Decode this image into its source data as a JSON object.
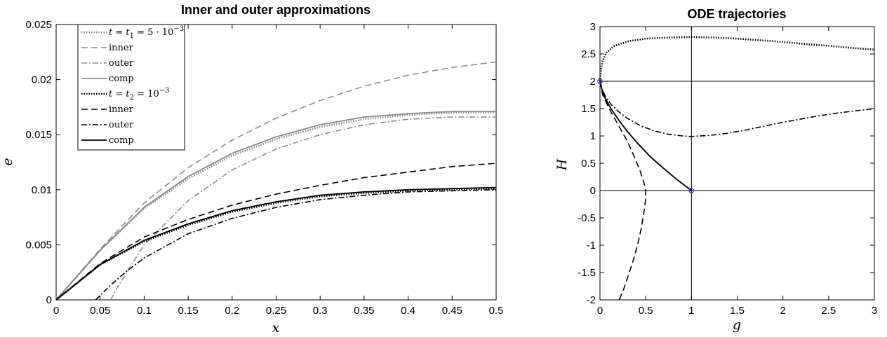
{
  "chart_data": [
    {
      "type": "line",
      "title": "Inner and outer approximations",
      "xlabel": "x",
      "ylabel": "e",
      "xlim": [
        0,
        0.5
      ],
      "ylim": [
        0,
        0.025
      ],
      "xticks": [
        "0",
        "0.05",
        "0.1",
        "0.15",
        "0.2",
        "0.25",
        "0.3",
        "0.35",
        "0.4",
        "0.45",
        "0.5"
      ],
      "yticks": [
        "0",
        "0.005",
        "0.01",
        "0.015",
        "0.02",
        "0.025"
      ],
      "grid": false,
      "legend_position": "top-left",
      "series": [
        {
          "name": "t = t₁ = 5·10⁻³",
          "color": "#8c8c8c",
          "style": "dotted",
          "x": [
            0,
            0.05,
            0.1,
            0.15,
            0.2,
            0.25,
            0.3,
            0.35,
            0.4,
            0.45,
            0.5
          ],
          "y": [
            0,
            0.0045,
            0.0083,
            0.011,
            0.0131,
            0.0146,
            0.0157,
            0.0164,
            0.0168,
            0.017,
            0.017
          ]
        },
        {
          "name": "inner",
          "color": "#8c8c8c",
          "style": "dashed",
          "x": [
            0,
            0.05,
            0.1,
            0.15,
            0.2,
            0.25,
            0.3,
            0.35,
            0.4,
            0.45,
            0.5
          ],
          "y": [
            0,
            0.0046,
            0.0088,
            0.012,
            0.0145,
            0.0165,
            0.0181,
            0.0194,
            0.0204,
            0.0211,
            0.0216
          ]
        },
        {
          "name": "outer",
          "color": "#8c8c8c",
          "style": "dashdot",
          "x": [
            0.062,
            0.07,
            0.1,
            0.15,
            0.2,
            0.25,
            0.3,
            0.35,
            0.4,
            0.45,
            0.5
          ],
          "y": [
            0,
            0.0012,
            0.005,
            0.009,
            0.0118,
            0.0137,
            0.015,
            0.0159,
            0.0164,
            0.0166,
            0.0166
          ]
        },
        {
          "name": "comp",
          "color": "#8c8c8c",
          "style": "solid",
          "x": [
            0,
            0.05,
            0.1,
            0.15,
            0.2,
            0.25,
            0.3,
            0.35,
            0.4,
            0.45,
            0.5
          ],
          "y": [
            0,
            0.0045,
            0.0084,
            0.0112,
            0.0133,
            0.0148,
            0.0159,
            0.0166,
            0.0169,
            0.0171,
            0.0171
          ]
        },
        {
          "name": "t = t₂ = 10⁻³",
          "color": "#000000",
          "style": "dotted",
          "x": [
            0,
            0.05,
            0.1,
            0.15,
            0.2,
            0.25,
            0.3,
            0.35,
            0.4,
            0.45,
            0.5
          ],
          "y": [
            0,
            0.0032,
            0.0053,
            0.0068,
            0.008,
            0.0088,
            0.0094,
            0.0097,
            0.0099,
            0.01,
            0.0101
          ]
        },
        {
          "name": "inner",
          "color": "#000000",
          "style": "dashed",
          "x": [
            0,
            0.05,
            0.1,
            0.15,
            0.2,
            0.25,
            0.3,
            0.35,
            0.4,
            0.45,
            0.5
          ],
          "y": [
            0,
            0.0033,
            0.0057,
            0.0073,
            0.0086,
            0.0096,
            0.0104,
            0.0111,
            0.0116,
            0.0121,
            0.0124
          ]
        },
        {
          "name": "outer",
          "color": "#000000",
          "style": "dashdot",
          "x": [
            0.045,
            0.06,
            0.08,
            0.1,
            0.15,
            0.2,
            0.25,
            0.3,
            0.35,
            0.4,
            0.45,
            0.5
          ],
          "y": [
            0,
            0.0012,
            0.0026,
            0.0038,
            0.006,
            0.0074,
            0.0084,
            0.0091,
            0.0095,
            0.0098,
            0.0099,
            0.01
          ]
        },
        {
          "name": "comp",
          "color": "#000000",
          "style": "solid",
          "x": [
            0,
            0.05,
            0.1,
            0.15,
            0.2,
            0.25,
            0.3,
            0.35,
            0.4,
            0.45,
            0.5
          ],
          "y": [
            0,
            0.0032,
            0.0054,
            0.0069,
            0.0081,
            0.0089,
            0.0095,
            0.0098,
            0.01,
            0.0101,
            0.0102
          ]
        }
      ]
    },
    {
      "type": "line",
      "title": "ODE trajectories",
      "xlabel": "g",
      "ylabel": "H",
      "xlim": [
        0,
        3
      ],
      "ylim": [
        -2,
        3
      ],
      "xticks": [
        "0",
        "0.5",
        "1",
        "1.5",
        "2",
        "2.5",
        "3"
      ],
      "yticks": [
        "-2",
        "-1.5",
        "-1",
        "-0.5",
        "0",
        "0.5",
        "1",
        "1.5",
        "2",
        "2.5",
        "3"
      ],
      "grid": false,
      "reference_lines": {
        "horizontal": [
          0,
          2
        ],
        "vertical": [
          1
        ]
      },
      "markers": [
        {
          "x": 0,
          "y": 2,
          "color": "#1f3fbf"
        },
        {
          "x": 1,
          "y": 0,
          "color": "#1f3fbf"
        }
      ],
      "series": [
        {
          "color": "#000000",
          "style": "dotted",
          "x": [
            0,
            0.01,
            0.03,
            0.07,
            0.15,
            0.3,
            0.5,
            0.75,
            1.0,
            1.25,
            1.5,
            1.75,
            2.0,
            2.25,
            2.5,
            2.75,
            3.0
          ],
          "y": [
            2.0,
            2.2,
            2.38,
            2.52,
            2.64,
            2.73,
            2.78,
            2.8,
            2.81,
            2.8,
            2.78,
            2.75,
            2.72,
            2.68,
            2.65,
            2.61,
            2.58
          ]
        },
        {
          "color": "#000000",
          "style": "dashdot",
          "x": [
            0,
            0.02,
            0.06,
            0.12,
            0.2,
            0.3,
            0.45,
            0.6,
            0.75,
            0.9,
            1.0,
            1.2,
            1.4,
            1.6,
            1.8,
            2.0,
            2.2,
            2.4,
            2.6,
            2.8,
            3.0
          ],
          "y": [
            2.0,
            1.86,
            1.72,
            1.58,
            1.45,
            1.32,
            1.18,
            1.09,
            1.03,
            1.0,
            0.99,
            1.01,
            1.05,
            1.11,
            1.18,
            1.25,
            1.31,
            1.37,
            1.42,
            1.46,
            1.5
          ]
        },
        {
          "color": "#000000",
          "style": "solid",
          "x": [
            0,
            0.02,
            0.06,
            0.12,
            0.2,
            0.3,
            0.42,
            0.55,
            0.7,
            0.85,
            1.0
          ],
          "y": [
            2.0,
            1.86,
            1.68,
            1.5,
            1.3,
            1.08,
            0.85,
            0.62,
            0.4,
            0.19,
            0
          ]
        },
        {
          "color": "#000000",
          "style": "dashed",
          "x": [
            0,
            0.03,
            0.1,
            0.2,
            0.3,
            0.38,
            0.44,
            0.48,
            0.5,
            0.5,
            0.48,
            0.45,
            0.41,
            0.36,
            0.31,
            0.26,
            0.21
          ],
          "y": [
            2.0,
            1.75,
            1.5,
            1.2,
            0.9,
            0.6,
            0.35,
            0.15,
            0.0,
            -0.15,
            -0.4,
            -0.7,
            -1.0,
            -1.3,
            -1.55,
            -1.8,
            -2.0
          ]
        }
      ]
    }
  ]
}
